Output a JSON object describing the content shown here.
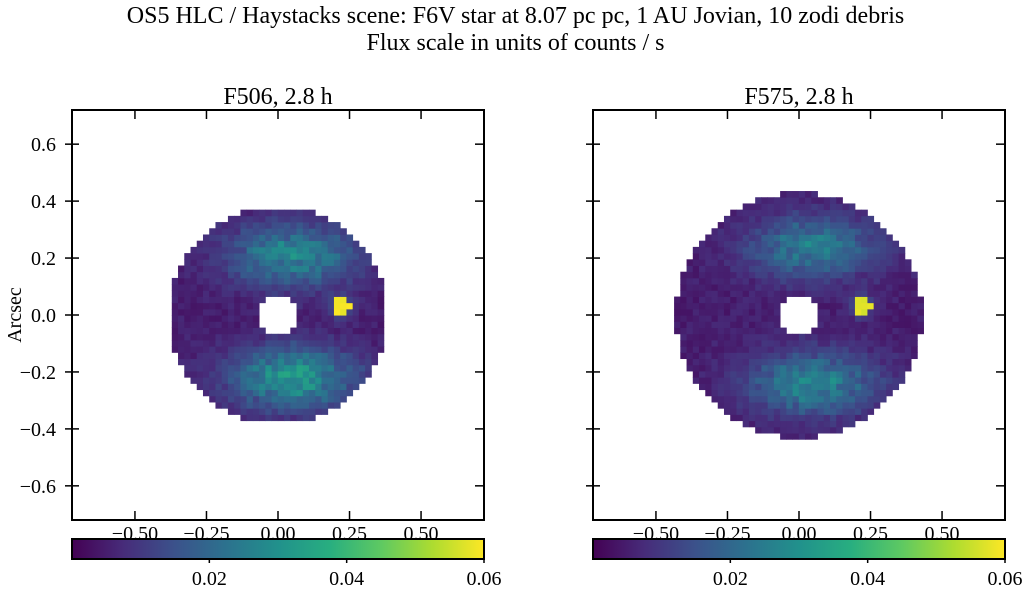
{
  "figure": {
    "title_line1": "OS5 HLC / Haystacks scene: F6V star at 8.07 pc pc, 1 AU Jovian, 10 zodi debris",
    "title_line2": "Flux scale in units of counts / s"
  },
  "chart_data": [
    {
      "type": "heatmap",
      "title": "F506, 2.8 h",
      "xlabel": "",
      "ylabel": "Arcsec",
      "xlim": [
        -0.72,
        0.72
      ],
      "ylim": [
        -0.72,
        0.72
      ],
      "xticks": [
        -0.5,
        -0.25,
        0.0,
        0.25,
        0.5
      ],
      "xtick_labels": [
        "−0.50",
        "−0.25",
        "0.00",
        "0.25",
        "0.50"
      ],
      "yticks": [
        0.6,
        0.4,
        0.2,
        0.0,
        -0.2,
        -0.4,
        -0.6
      ],
      "ytick_labels": [
        "0.6",
        "0.4",
        "0.2",
        "0.0",
        "−0.2",
        "−0.4",
        "−0.6"
      ],
      "colormap": "viridis",
      "colorbar": {
        "vmin": 0.0,
        "vmax": 0.06,
        "ticks": [
          0.02,
          0.04,
          0.06
        ],
        "tick_labels": [
          "0.02",
          "0.04",
          "0.06"
        ]
      },
      "mask_inner_radius_arcsec": 0.075,
      "mask_outer_radius_arcsec": 0.38,
      "planet": {
        "x": 0.22,
        "y": 0.03,
        "value": 0.06
      },
      "disk_bright_lobes": [
        {
          "x": 0.05,
          "y": 0.21,
          "value": 0.026
        },
        {
          "x": 0.05,
          "y": -0.22,
          "value": 0.03
        }
      ]
    },
    {
      "type": "heatmap",
      "title": "F575, 2.8 h",
      "xlabel": "",
      "ylabel": "",
      "xlim": [
        -0.72,
        0.72
      ],
      "ylim": [
        -0.72,
        0.72
      ],
      "xticks": [
        -0.5,
        -0.25,
        0.0,
        0.25,
        0.5
      ],
      "xtick_labels": [
        "−0.50",
        "−0.25",
        "0.00",
        "0.25",
        "0.50"
      ],
      "yticks": [
        0.6,
        0.4,
        0.2,
        0.0,
        -0.2,
        -0.4,
        -0.6
      ],
      "ytick_labels": [],
      "colormap": "viridis",
      "colorbar": {
        "vmin": 0.0,
        "vmax": 0.06,
        "ticks": [
          0.02,
          0.04,
          0.06
        ],
        "tick_labels": [
          "0.02",
          "0.04",
          "0.06"
        ]
      },
      "mask_inner_radius_arcsec": 0.075,
      "mask_outer_radius_arcsec": 0.43,
      "planet": {
        "x": 0.22,
        "y": 0.03,
        "value": 0.058
      },
      "disk_bright_lobes": [
        {
          "x": 0.05,
          "y": 0.24,
          "value": 0.024
        },
        {
          "x": 0.05,
          "y": -0.24,
          "value": 0.026
        }
      ]
    }
  ]
}
